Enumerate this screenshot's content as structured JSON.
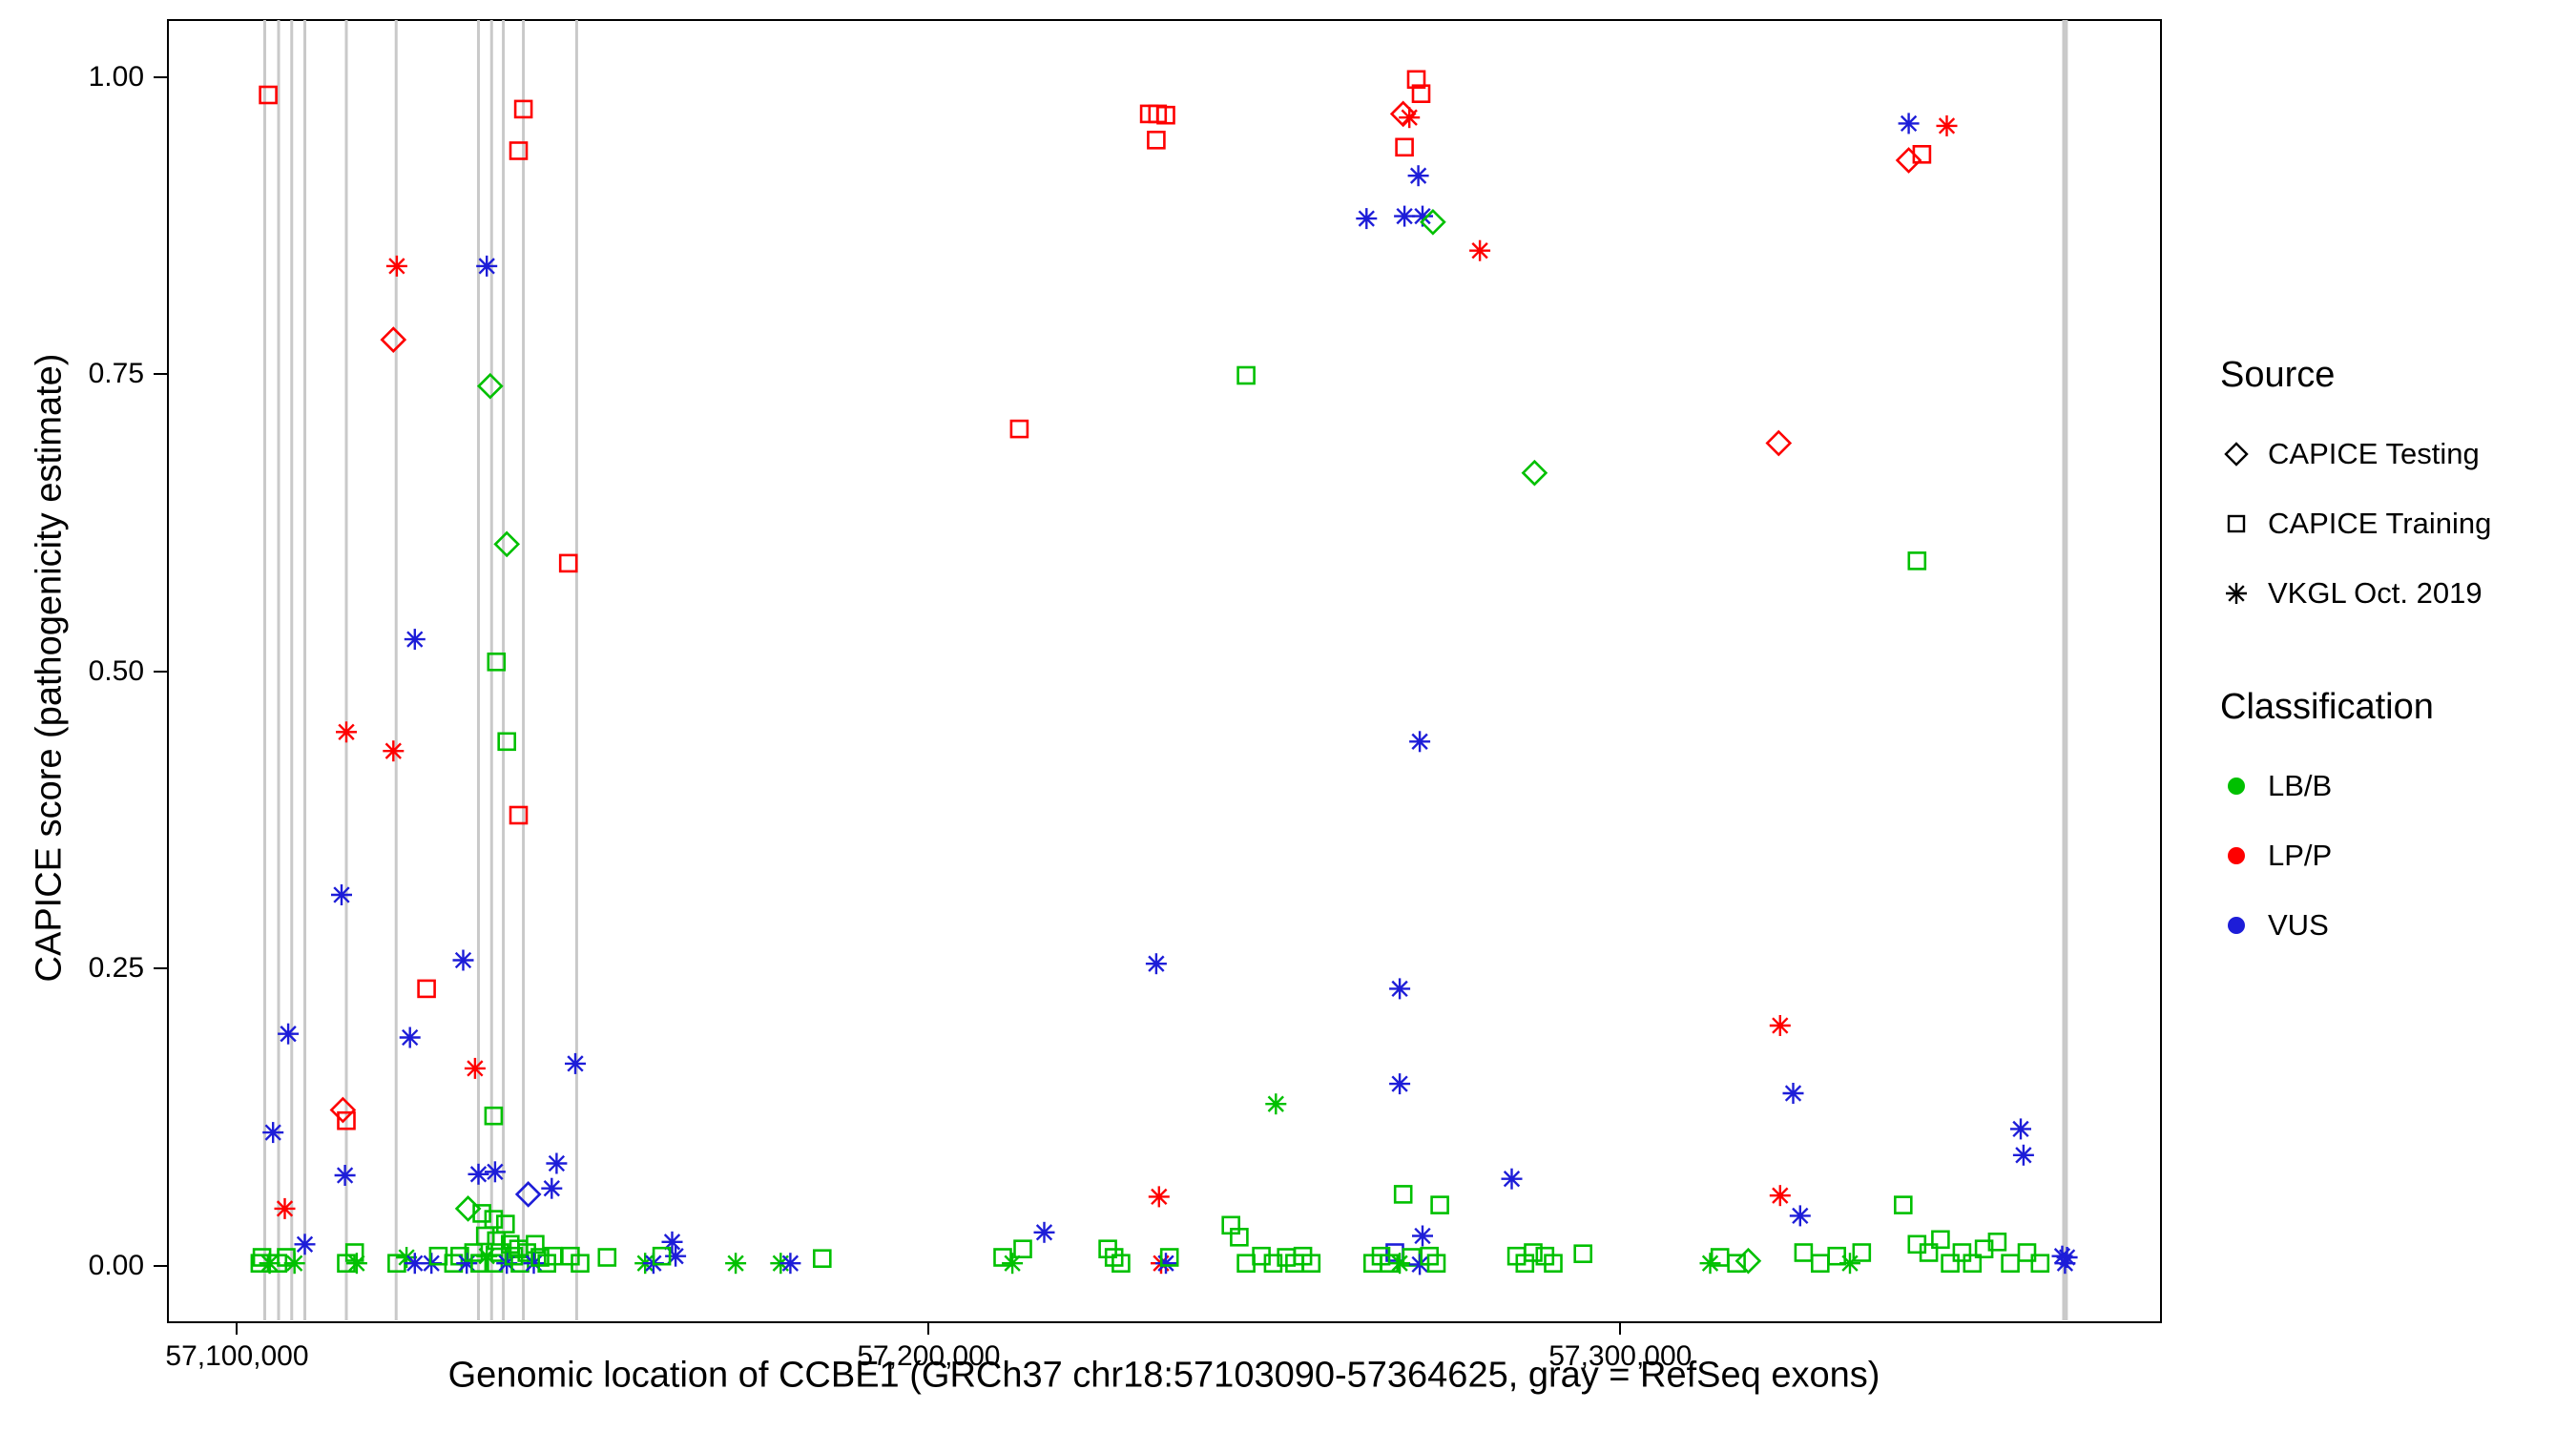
{
  "chart_data": {
    "type": "scatter",
    "title": "",
    "xlabel": "Genomic location of CCBE1 (GRCh37 chr18:57103090-57364625, gray = RefSeq exons)",
    "ylabel": "CAPICE score (pathogenicity estimate)",
    "xlim": [
      57090000,
      57377900
    ],
    "ylim": [
      -0.046,
      1.048
    ],
    "grid": "off",
    "legend_position": "right",
    "x_ticks": [
      {
        "value": 57100000,
        "label": "57,100,000"
      },
      {
        "value": 57200000,
        "label": "57,200,000"
      },
      {
        "value": 57300000,
        "label": "57,300,000"
      }
    ],
    "y_ticks": [
      {
        "value": 1.0,
        "label": "1.00"
      },
      {
        "value": 0.75,
        "label": "0.75"
      },
      {
        "value": 0.5,
        "label": "0.50"
      },
      {
        "value": 0.25,
        "label": "0.25"
      },
      {
        "value": 0.0,
        "label": "0.00"
      }
    ],
    "exon_color": "#c9c9c9",
    "exons": [
      57104000,
      57106000,
      57107900,
      57109800,
      57115800,
      57123000,
      57134900,
      57136800,
      57138500,
      57141400,
      57149100,
      57364100,
      57364500
    ],
    "shapes": {
      "D": "CAPICE Testing",
      "S": "CAPICE Training",
      "A": "VKGL Oct. 2019"
    },
    "classes": {
      "G": {
        "label": "LB/B",
        "color": "#00c000"
      },
      "R": {
        "label": "LP/P",
        "color": "#fe0000"
      },
      "B": {
        "label": "VUS",
        "color": "#1d1dd8"
      }
    },
    "points": [
      [
        57104500,
        0.985,
        "S",
        "R"
      ],
      [
        57141400,
        0.973,
        "S",
        "R"
      ],
      [
        57140700,
        0.938,
        "S",
        "R"
      ],
      [
        57123100,
        0.841,
        "A",
        "R"
      ],
      [
        57136100,
        0.841,
        "A",
        "B"
      ],
      [
        57122600,
        0.779,
        "D",
        "R"
      ],
      [
        57136600,
        0.74,
        "D",
        "G"
      ],
      [
        57139000,
        0.607,
        "D",
        "G"
      ],
      [
        57147900,
        0.591,
        "S",
        "R"
      ],
      [
        57137500,
        0.508,
        "S",
        "G"
      ],
      [
        57125700,
        0.527,
        "A",
        "B"
      ],
      [
        57139000,
        0.441,
        "S",
        "G"
      ],
      [
        57115800,
        0.449,
        "A",
        "R"
      ],
      [
        57122600,
        0.433,
        "A",
        "R"
      ],
      [
        57140700,
        0.379,
        "S",
        "R"
      ],
      [
        57115100,
        0.312,
        "A",
        "B"
      ],
      [
        57132700,
        0.257,
        "A",
        "B"
      ],
      [
        57127400,
        0.233,
        "S",
        "R"
      ],
      [
        57107400,
        0.195,
        "A",
        "B"
      ],
      [
        57125000,
        0.192,
        "A",
        "B"
      ],
      [
        57134400,
        0.166,
        "A",
        "R"
      ],
      [
        57148900,
        0.17,
        "A",
        "B"
      ],
      [
        57115300,
        0.131,
        "D",
        "R"
      ],
      [
        57115800,
        0.122,
        "S",
        "R"
      ],
      [
        57137100,
        0.126,
        "S",
        "G"
      ],
      [
        57105200,
        0.112,
        "A",
        "B"
      ],
      [
        57134900,
        0.077,
        "A",
        "B"
      ],
      [
        57115600,
        0.076,
        "A",
        "B"
      ],
      [
        57137300,
        0.079,
        "A",
        "B"
      ],
      [
        57145500,
        0.065,
        "A",
        "B"
      ],
      [
        57142100,
        0.06,
        "D",
        "B"
      ],
      [
        57146200,
        0.086,
        "A",
        "B"
      ],
      [
        57106900,
        0.048,
        "A",
        "R"
      ],
      [
        57133400,
        0.048,
        "D",
        "G"
      ],
      [
        57135400,
        0.044,
        "S",
        "G"
      ],
      [
        57137100,
        0.039,
        "S",
        "G"
      ],
      [
        57138800,
        0.035,
        "S",
        "G"
      ],
      [
        57135900,
        0.025,
        "S",
        "G"
      ],
      [
        57137500,
        0.021,
        "S",
        "G"
      ],
      [
        57139500,
        0.018,
        "S",
        "G"
      ],
      [
        57140700,
        0.014,
        "S",
        "G"
      ],
      [
        57109800,
        0.018,
        "A",
        "B"
      ],
      [
        57143100,
        0.018,
        "S",
        "G"
      ],
      [
        57162900,
        0.02,
        "A",
        "B"
      ],
      [
        57163400,
        0.008,
        "A",
        "B"
      ],
      [
        57103300,
        0.002,
        "S",
        "G"
      ],
      [
        57103600,
        0.007,
        "S",
        "G"
      ],
      [
        57104700,
        0.002,
        "A",
        "G"
      ],
      [
        57105900,
        0.002,
        "S",
        "G"
      ],
      [
        57107100,
        0.007,
        "S",
        "G"
      ],
      [
        57108300,
        0.002,
        "A",
        "G"
      ],
      [
        57115800,
        0.002,
        "S",
        "G"
      ],
      [
        57117300,
        0.002,
        "A",
        "G"
      ],
      [
        57117000,
        0.011,
        "S",
        "G"
      ],
      [
        57123100,
        0.002,
        "S",
        "G"
      ],
      [
        57124500,
        0.007,
        "A",
        "G"
      ],
      [
        57125700,
        0.002,
        "A",
        "B"
      ],
      [
        57128100,
        0.002,
        "A",
        "B"
      ],
      [
        57129100,
        0.008,
        "S",
        "G"
      ],
      [
        57131300,
        0.002,
        "S",
        "G"
      ],
      [
        57132200,
        0.008,
        "S",
        "G"
      ],
      [
        57133200,
        0.002,
        "A",
        "B"
      ],
      [
        57134200,
        0.011,
        "S",
        "G"
      ],
      [
        57135100,
        0.002,
        "S",
        "G"
      ],
      [
        57136100,
        0.008,
        "A",
        "G"
      ],
      [
        57137100,
        0.002,
        "S",
        "G"
      ],
      [
        57138000,
        0.011,
        "S",
        "G"
      ],
      [
        57139000,
        0.002,
        "A",
        "B"
      ],
      [
        57140000,
        0.008,
        "S",
        "G"
      ],
      [
        57140900,
        0.002,
        "S",
        "G"
      ],
      [
        57141900,
        0.011,
        "S",
        "G"
      ],
      [
        57142900,
        0.002,
        "A",
        "B"
      ],
      [
        57143800,
        0.007,
        "S",
        "G"
      ],
      [
        57144800,
        0.002,
        "S",
        "G"
      ],
      [
        57145700,
        0.008,
        "S",
        "G"
      ],
      [
        57148200,
        0.008,
        "S",
        "G"
      ],
      [
        57149600,
        0.002,
        "S",
        "G"
      ],
      [
        57153500,
        0.007,
        "S",
        "G"
      ],
      [
        57159000,
        0.002,
        "A",
        "G"
      ],
      [
        57160200,
        0.002,
        "A",
        "B"
      ],
      [
        57161400,
        0.008,
        "S",
        "G"
      ],
      [
        57172100,
        0.002,
        "A",
        "G"
      ],
      [
        57178600,
        0.002,
        "A",
        "G"
      ],
      [
        57180000,
        0.002,
        "A",
        "B"
      ],
      [
        57184600,
        0.006,
        "S",
        "G"
      ],
      [
        57210700,
        0.007,
        "S",
        "G"
      ],
      [
        57212100,
        0.002,
        "A",
        "G"
      ],
      [
        57213600,
        0.014,
        "S",
        "G"
      ],
      [
        57213100,
        0.704,
        "S",
        "R"
      ],
      [
        57216700,
        0.028,
        "A",
        "B"
      ],
      [
        57225900,
        0.014,
        "S",
        "G"
      ],
      [
        57226800,
        0.007,
        "S",
        "G"
      ],
      [
        57227800,
        0.002,
        "S",
        "G"
      ],
      [
        57231900,
        0.969,
        "S",
        "R"
      ],
      [
        57233100,
        0.969,
        "S",
        "R"
      ],
      [
        57234300,
        0.968,
        "S",
        "R"
      ],
      [
        57232900,
        0.947,
        "S",
        "R"
      ],
      [
        57233300,
        0.058,
        "A",
        "R"
      ],
      [
        57232900,
        0.254,
        "A",
        "B"
      ],
      [
        57233600,
        0.002,
        "A",
        "R"
      ],
      [
        57234300,
        0.002,
        "A",
        "B"
      ],
      [
        57234800,
        0.007,
        "S",
        "G"
      ],
      [
        57245900,
        0.749,
        "S",
        "G"
      ],
      [
        57243700,
        0.034,
        "S",
        "G"
      ],
      [
        57244900,
        0.024,
        "S",
        "G"
      ],
      [
        57245900,
        0.002,
        "S",
        "G"
      ],
      [
        57248100,
        0.008,
        "S",
        "G"
      ],
      [
        57249800,
        0.002,
        "S",
        "G"
      ],
      [
        57250200,
        0.136,
        "A",
        "G"
      ],
      [
        57251700,
        0.007,
        "S",
        "G"
      ],
      [
        57252900,
        0.002,
        "S",
        "G"
      ],
      [
        57254100,
        0.008,
        "S",
        "G"
      ],
      [
        57255300,
        0.002,
        "S",
        "G"
      ],
      [
        57263300,
        0.881,
        "A",
        "B"
      ],
      [
        57270500,
        0.998,
        "S",
        "R"
      ],
      [
        57271200,
        0.986,
        "S",
        "R"
      ],
      [
        57268600,
        0.969,
        "D",
        "R"
      ],
      [
        57269500,
        0.966,
        "A",
        "R"
      ],
      [
        57268800,
        0.941,
        "S",
        "R"
      ],
      [
        57270800,
        0.917,
        "A",
        "B"
      ],
      [
        57268800,
        0.883,
        "A",
        "B"
      ],
      [
        57271400,
        0.883,
        "A",
        "B"
      ],
      [
        57272900,
        0.878,
        "D",
        "G"
      ],
      [
        57279700,
        0.854,
        "A",
        "R"
      ],
      [
        57271000,
        0.441,
        "A",
        "B"
      ],
      [
        57268100,
        0.233,
        "A",
        "B"
      ],
      [
        57268100,
        0.153,
        "A",
        "B"
      ],
      [
        57268600,
        0.06,
        "S",
        "G"
      ],
      [
        57273900,
        0.051,
        "S",
        "G"
      ],
      [
        57271400,
        0.025,
        "A",
        "B"
      ],
      [
        57267400,
        0.011,
        "S",
        "B"
      ],
      [
        57264200,
        0.002,
        "S",
        "G"
      ],
      [
        57265400,
        0.008,
        "S",
        "G"
      ],
      [
        57266600,
        0.002,
        "S",
        "G"
      ],
      [
        57268100,
        0.002,
        "A",
        "G"
      ],
      [
        57269800,
        0.007,
        "S",
        "G"
      ],
      [
        57271000,
        0.001,
        "A",
        "B"
      ],
      [
        57272400,
        0.008,
        "S",
        "G"
      ],
      [
        57273400,
        0.002,
        "S",
        "G"
      ],
      [
        57284300,
        0.073,
        "A",
        "B"
      ],
      [
        57287600,
        0.667,
        "D",
        "G"
      ],
      [
        57285000,
        0.008,
        "S",
        "G"
      ],
      [
        57286200,
        0.002,
        "S",
        "G"
      ],
      [
        57287400,
        0.011,
        "S",
        "G"
      ],
      [
        57289100,
        0.008,
        "S",
        "G"
      ],
      [
        57290300,
        0.002,
        "S",
        "G"
      ],
      [
        57294600,
        0.01,
        "S",
        "G"
      ],
      [
        57313000,
        0.002,
        "A",
        "G"
      ],
      [
        57314400,
        0.007,
        "S",
        "G"
      ],
      [
        57316800,
        0.002,
        "S",
        "G"
      ],
      [
        57318500,
        0.004,
        "D",
        "G"
      ],
      [
        57322900,
        0.692,
        "D",
        "R"
      ],
      [
        57323100,
        0.202,
        "A",
        "R"
      ],
      [
        57325000,
        0.145,
        "A",
        "B"
      ],
      [
        57323100,
        0.059,
        "A",
        "R"
      ],
      [
        57326000,
        0.042,
        "A",
        "B"
      ],
      [
        57326500,
        0.011,
        "S",
        "G"
      ],
      [
        57328900,
        0.002,
        "S",
        "G"
      ],
      [
        57331300,
        0.008,
        "S",
        "G"
      ],
      [
        57333200,
        0.002,
        "A",
        "G"
      ],
      [
        57334900,
        0.011,
        "S",
        "G"
      ],
      [
        57341700,
        0.961,
        "A",
        "B"
      ],
      [
        57341700,
        0.93,
        "D",
        "R"
      ],
      [
        57343600,
        0.935,
        "S",
        "R"
      ],
      [
        57347200,
        0.959,
        "A",
        "R"
      ],
      [
        57342900,
        0.593,
        "S",
        "G"
      ],
      [
        57340900,
        0.051,
        "S",
        "G"
      ],
      [
        57342900,
        0.018,
        "S",
        "G"
      ],
      [
        57344600,
        0.011,
        "S",
        "G"
      ],
      [
        57346300,
        0.022,
        "S",
        "G"
      ],
      [
        57347700,
        0.002,
        "S",
        "G"
      ],
      [
        57349400,
        0.011,
        "S",
        "G"
      ],
      [
        57350900,
        0.002,
        "S",
        "G"
      ],
      [
        57352600,
        0.014,
        "S",
        "G"
      ],
      [
        57354500,
        0.02,
        "S",
        "G"
      ],
      [
        57356400,
        0.002,
        "S",
        "G"
      ],
      [
        57357900,
        0.115,
        "A",
        "B"
      ],
      [
        57358300,
        0.093,
        "A",
        "B"
      ],
      [
        57358800,
        0.011,
        "S",
        "G"
      ],
      [
        57360700,
        0.002,
        "S",
        "G"
      ],
      [
        57363900,
        0.008,
        "A",
        "B"
      ],
      [
        57364300,
        0.002,
        "A",
        "B"
      ],
      [
        57364600,
        0.007,
        "A",
        "B"
      ]
    ]
  },
  "legend": {
    "source_title": "Source",
    "source_items": [
      {
        "shape": "D",
        "label": "CAPICE Testing"
      },
      {
        "shape": "S",
        "label": "CAPICE Training"
      },
      {
        "shape": "A",
        "label": "VKGL Oct. 2019"
      }
    ],
    "class_title": "Classification",
    "class_items": [
      {
        "class": "G",
        "label": "LB/B"
      },
      {
        "class": "R",
        "label": "LP/P"
      },
      {
        "class": "B",
        "label": "VUS"
      }
    ]
  }
}
